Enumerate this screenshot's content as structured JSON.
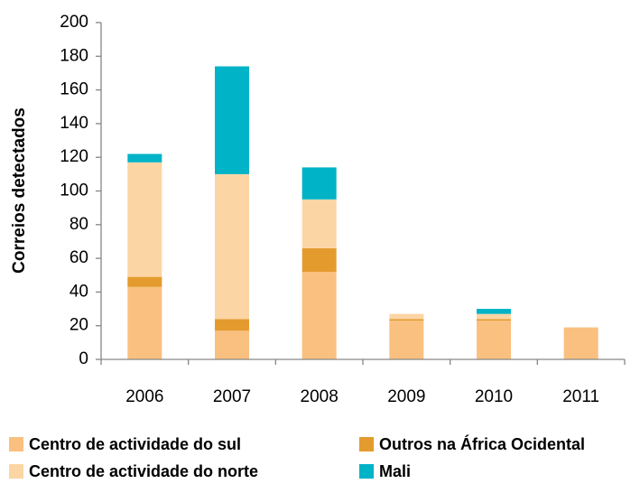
{
  "chart_data": {
    "type": "stacked_bar",
    "ylabel": "Correios detectados",
    "categories": [
      "2006",
      "2007",
      "2008",
      "2009",
      "2010",
      "2011"
    ],
    "series": [
      {
        "name": "Centro de actividade do sul",
        "color": "#fac080",
        "values": [
          43,
          17,
          52,
          23,
          23,
          19
        ]
      },
      {
        "name": "Outros na África Ocidental",
        "color": "#e49b2e",
        "values": [
          6,
          7,
          14,
          1,
          1,
          0
        ]
      },
      {
        "name": "Centro de actividade do norte",
        "color": "#fcd5a5",
        "values": [
          68,
          86,
          29,
          3,
          3,
          0
        ]
      },
      {
        "name": "Mali",
        "color": "#00b3c6",
        "values": [
          5,
          64,
          19,
          0,
          3,
          0
        ]
      }
    ],
    "ylim": [
      0,
      200
    ],
    "yticks": [
      0,
      20,
      40,
      60,
      80,
      100,
      120,
      140,
      160,
      180,
      200
    ],
    "legend": "bottom"
  }
}
